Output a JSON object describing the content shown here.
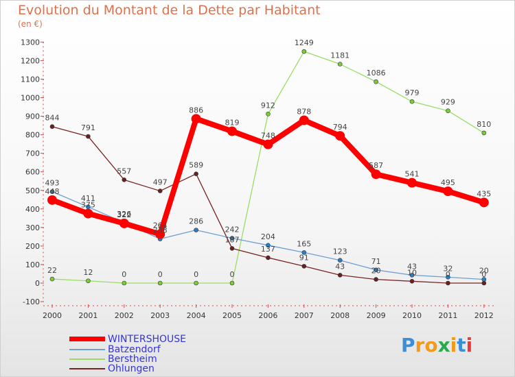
{
  "chart_data": {
    "type": "line",
    "title": "Evolution du Montant de la Dette par Habitant",
    "subtitle": "(en €)",
    "xlabel": "",
    "ylabel": "",
    "x": [
      "2000",
      "2001",
      "2002",
      "2003",
      "2004",
      "2005",
      "2006",
      "2007",
      "2008",
      "2009",
      "2010",
      "2011",
      "2012"
    ],
    "ylim": [
      -100,
      1300
    ],
    "yticks": [
      -100,
      0,
      100,
      200,
      300,
      400,
      500,
      600,
      700,
      800,
      900,
      1000,
      1100,
      1200,
      1300
    ],
    "grid": false,
    "legend_position": "bottom-left",
    "series": [
      {
        "name": "WINTERSHOUSE",
        "color": "#ff0000",
        "values": [
          448,
          375,
          322,
          264,
          886,
          819,
          748,
          878,
          794,
          587,
          541,
          495,
          435
        ]
      },
      {
        "name": "Batzendorf",
        "color": "#6e9fd2",
        "values": [
          493,
          411,
          326,
          238,
          286,
          242,
          204,
          165,
          123,
          71,
          43,
          32,
          20
        ]
      },
      {
        "name": "Berstheim",
        "color": "#99dd66",
        "values": [
          22,
          12,
          0,
          0,
          0,
          0,
          912,
          1249,
          1181,
          1086,
          979,
          929,
          810
        ]
      },
      {
        "name": "Ohlungen",
        "color": "#772222",
        "values": [
          844,
          791,
          557,
          497,
          589,
          187,
          137,
          91,
          43,
          20,
          10,
          0,
          0
        ]
      }
    ],
    "data_labels": {
      "WINTERSHOUSE": [
        "448",
        "375",
        "322",
        "264",
        "886",
        "819",
        "748",
        "878",
        "794",
        "587",
        "541",
        "495",
        "435"
      ],
      "Batzendorf": [
        "493",
        "411",
        "326",
        "238",
        "286",
        "242",
        "204",
        "165",
        "123",
        "71",
        "43",
        "32",
        "20"
      ],
      "Berstheim": [
        "22",
        "12",
        "0",
        "0",
        "0",
        "0",
        "912",
        "1249",
        "1181",
        "1086",
        "979",
        "929",
        "810"
      ],
      "Ohlungen": [
        "844",
        "791",
        "557",
        "497",
        "589",
        "187",
        "137",
        "91",
        "43",
        "20",
        "10",
        "0",
        "0"
      ]
    }
  },
  "legend": {
    "items": [
      {
        "label": "WINTERSHOUSE",
        "color": "#ff0000"
      },
      {
        "label": "Batzendorf",
        "color": "#6e9fd2"
      },
      {
        "label": "Berstheim",
        "color": "#99dd66"
      },
      {
        "label": "Ohlungen",
        "color": "#772222"
      }
    ]
  },
  "brand": {
    "letters": [
      "P",
      "r",
      "o",
      "x",
      "i",
      "t",
      "i"
    ],
    "colors": [
      "#3a8fd8",
      "#f39a1c",
      "#f39a1c",
      "#2aa84a",
      "#f39a1c",
      "#3a8fd8",
      "#e63c3c"
    ]
  }
}
